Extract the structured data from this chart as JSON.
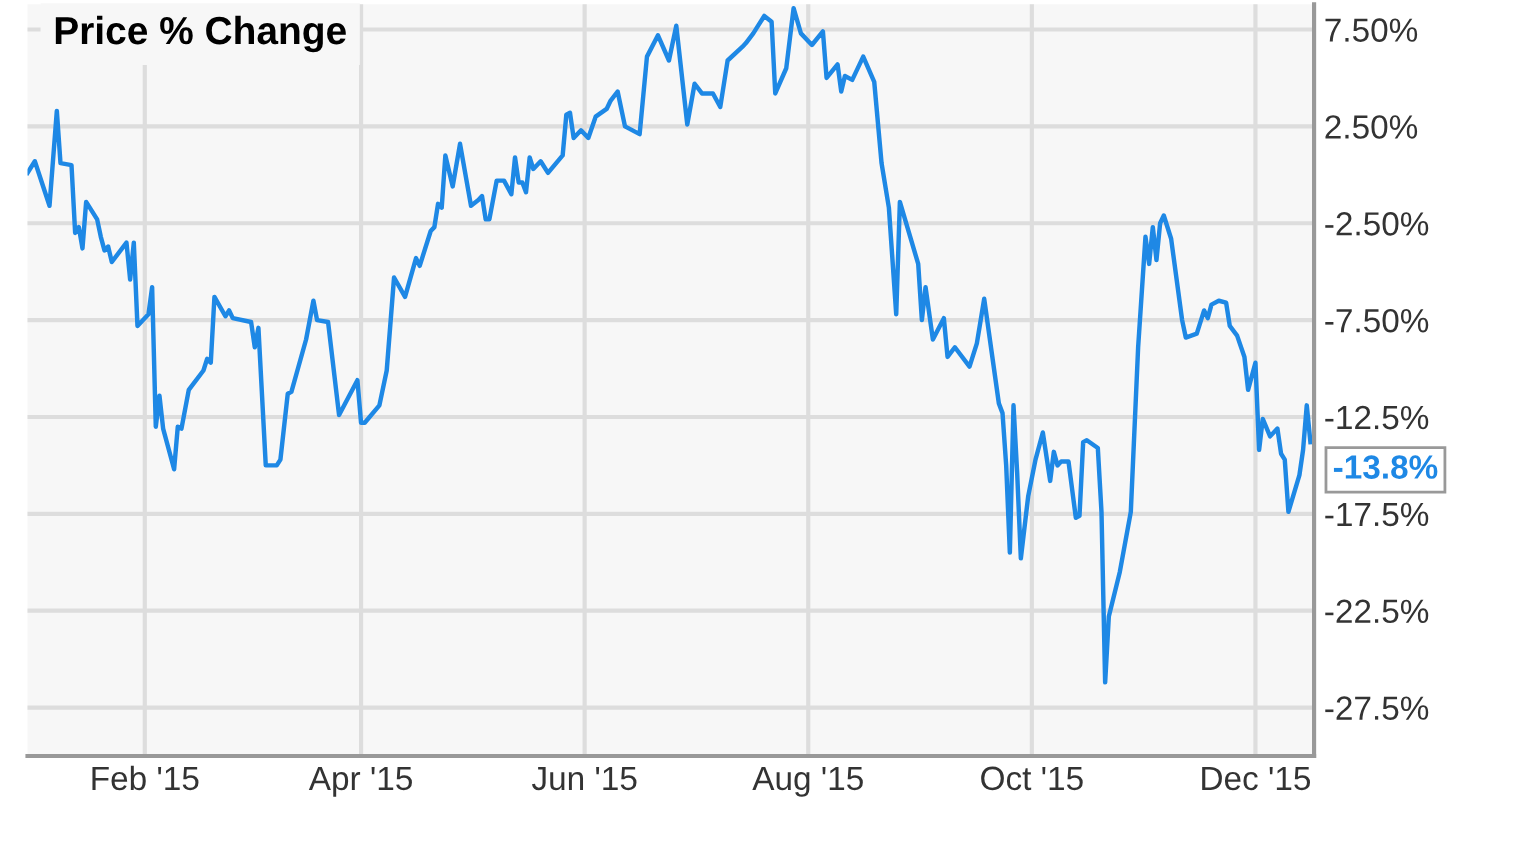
{
  "chart_data": {
    "type": "line",
    "title": "Price % Change",
    "x": [
      "2014-12-31",
      "2015-01-02",
      "2015-01-06",
      "2015-01-08",
      "2015-01-09",
      "2015-01-12",
      "2015-01-13",
      "2015-01-14",
      "2015-01-15",
      "2015-01-16",
      "2015-01-19",
      "2015-01-20",
      "2015-01-21",
      "2015-01-22",
      "2015-01-23",
      "2015-01-27",
      "2015-01-28",
      "2015-01-29",
      "2015-01-30",
      "2015-02-02",
      "2015-02-03",
      "2015-02-04",
      "2015-02-05",
      "2015-02-06",
      "2015-02-09",
      "2015-02-10",
      "2015-02-11",
      "2015-02-13",
      "2015-02-17",
      "2015-02-18",
      "2015-02-19",
      "2015-02-20",
      "2015-02-23",
      "2015-02-24",
      "2015-02-25",
      "2015-03-02",
      "2015-03-03",
      "2015-03-04",
      "2015-03-06",
      "2015-03-09",
      "2015-03-10",
      "2015-03-12",
      "2015-03-13",
      "2015-03-17",
      "2015-03-19",
      "2015-03-20",
      "2015-03-23",
      "2015-03-26",
      "2015-03-31",
      "2015-04-01",
      "2015-04-02",
      "2015-04-06",
      "2015-04-08",
      "2015-04-10",
      "2015-04-13",
      "2015-04-16",
      "2015-04-17",
      "2015-04-20",
      "2015-04-21",
      "2015-04-22",
      "2015-04-23",
      "2015-04-24",
      "2015-04-26",
      "2015-04-28",
      "2015-05-01",
      "2015-05-03",
      "2015-05-04",
      "2015-05-05",
      "2015-05-06",
      "2015-05-08",
      "2015-05-10",
      "2015-05-12",
      "2015-05-13",
      "2015-05-14",
      "2015-05-15",
      "2015-05-16",
      "2015-05-17",
      "2015-05-18",
      "2015-05-20",
      "2015-05-22",
      "2015-05-26",
      "2015-05-27",
      "2015-05-28",
      "2015-05-29",
      "2015-05-31",
      "2015-06-02",
      "2015-06-04",
      "2015-06-07",
      "2015-06-08",
      "2015-06-10",
      "2015-06-12",
      "2015-06-16",
      "2015-06-18",
      "2015-06-21",
      "2015-06-24",
      "2015-06-26",
      "2015-06-29",
      "2015-07-01",
      "2015-07-03",
      "2015-07-06",
      "2015-07-08",
      "2015-07-10",
      "2015-07-14",
      "2015-07-15",
      "2015-07-17",
      "2015-07-20",
      "2015-07-22",
      "2015-07-23",
      "2015-07-26",
      "2015-07-28",
      "2015-07-30",
      "2015-08-02",
      "2015-08-05",
      "2015-08-06",
      "2015-08-09",
      "2015-08-10",
      "2015-08-11",
      "2015-08-13",
      "2015-08-16",
      "2015-08-19",
      "2015-08-21",
      "2015-08-23",
      "2015-08-25",
      "2015-08-26",
      "2015-08-31",
      "2015-09-01",
      "2015-09-02",
      "2015-09-04",
      "2015-09-07",
      "2015-09-08",
      "2015-09-10",
      "2015-09-14",
      "2015-09-16",
      "2015-09-18",
      "2015-09-20",
      "2015-09-22",
      "2015-09-23",
      "2015-09-24",
      "2015-09-25",
      "2015-09-26",
      "2015-09-27",
      "2015-09-28",
      "2015-09-30",
      "2015-10-02",
      "2015-10-04",
      "2015-10-06",
      "2015-10-07",
      "2015-10-08",
      "2015-10-09",
      "2015-10-11",
      "2015-10-13",
      "2015-10-14",
      "2015-10-15",
      "2015-10-16",
      "2015-10-19",
      "2015-10-20",
      "2015-10-21",
      "2015-10-22",
      "2015-10-25",
      "2015-10-28",
      "2015-10-30",
      "2015-11-01",
      "2015-11-02",
      "2015-11-03",
      "2015-11-04",
      "2015-11-05",
      "2015-11-06",
      "2015-11-08",
      "2015-11-11",
      "2015-11-12",
      "2015-11-15",
      "2015-11-17",
      "2015-11-18",
      "2015-11-19",
      "2015-11-21",
      "2015-11-23",
      "2015-11-24",
      "2015-11-26",
      "2015-11-28",
      "2015-11-29",
      "2015-12-01",
      "2015-12-02",
      "2015-12-03",
      "2015-12-05",
      "2015-12-07",
      "2015-12-08",
      "2015-12-09",
      "2015-12-10",
      "2015-12-13",
      "2015-12-14",
      "2015-12-15",
      "2015-12-16"
    ],
    "series": [
      {
        "color": "#1e88e5",
        "values": [
          0.1,
          0.7,
          -1.6,
          3.3,
          0.6,
          0.5,
          -3.0,
          -2.7,
          -3.8,
          -1.4,
          -2.3,
          -3.2,
          -3.9,
          -3.7,
          -4.5,
          -3.5,
          -5.4,
          -3.5,
          -7.8,
          -7.2,
          -5.8,
          -13.0,
          -11.4,
          -13.1,
          -15.2,
          -13.0,
          -13.1,
          -11.1,
          -10.1,
          -9.5,
          -9.7,
          -6.3,
          -7.3,
          -7.0,
          -7.4,
          -7.6,
          -8.9,
          -7.9,
          -15.0,
          -15.0,
          -14.7,
          -11.3,
          -11.2,
          -8.5,
          -6.5,
          -7.5,
          -7.6,
          -12.4,
          -10.6,
          -12.8,
          -12.8,
          -11.9,
          -10.1,
          -5.3,
          -6.3,
          -4.3,
          -4.7,
          -2.9,
          -2.7,
          -1.5,
          -1.7,
          1.0,
          -0.6,
          1.6,
          -1.6,
          -1.3,
          -1.1,
          -2.3,
          -2.3,
          -0.3,
          -0.3,
          -1.0,
          0.9,
          -0.4,
          -0.4,
          -0.9,
          0.9,
          0.3,
          0.7,
          0.1,
          1.0,
          3.1,
          3.2,
          1.9,
          2.3,
          1.9,
          3.0,
          3.4,
          3.8,
          4.3,
          2.5,
          2.1,
          6.1,
          7.2,
          5.9,
          7.7,
          2.6,
          4.7,
          4.2,
          4.2,
          3.5,
          5.9,
          6.6,
          6.8,
          7.3,
          8.2,
          7.9,
          4.2,
          5.5,
          8.6,
          7.3,
          6.7,
          7.4,
          5.0,
          5.7,
          4.3,
          5.1,
          4.9,
          6.1,
          4.8,
          0.6,
          -1.7,
          -7.2,
          -1.4,
          -4.6,
          -7.5,
          -5.8,
          -8.5,
          -7.4,
          -9.4,
          -8.9,
          -9.9,
          -8.7,
          -6.4,
          -9.1,
          -11.8,
          -12.3,
          -15.0,
          -19.5,
          -11.9,
          -15.4,
          -19.8,
          -16.6,
          -14.7,
          -13.3,
          -15.8,
          -14.3,
          -15.0,
          -14.8,
          -14.8,
          -17.7,
          -17.6,
          -13.8,
          -13.7,
          -14.1,
          -17.4,
          -26.2,
          -22.8,
          -20.5,
          -17.4,
          -8.9,
          -3.2,
          -4.6,
          -2.7,
          -4.4,
          -2.5,
          -2.1,
          -3.3,
          -7.5,
          -8.4,
          -8.2,
          -7.0,
          -7.4,
          -6.7,
          -6.5,
          -6.6,
          -7.8,
          -8.3,
          -9.4,
          -11.1,
          -9.7,
          -14.2,
          -12.6,
          -13.5,
          -13.1,
          -14.4,
          -14.7,
          -17.4,
          -15.5,
          -14.2,
          -11.9,
          -13.8
        ]
      }
    ],
    "xlim": [
      "2014-12-31",
      "2015-12-17"
    ],
    "xticks": [
      {
        "value": "2015-02-01",
        "label": "Feb '15"
      },
      {
        "value": "2015-04-01",
        "label": "Apr '15"
      },
      {
        "value": "2015-06-01",
        "label": "Jun '15"
      },
      {
        "value": "2015-08-01",
        "label": "Aug '15"
      },
      {
        "value": "2015-10-01",
        "label": "Oct '15"
      },
      {
        "value": "2015-12-01",
        "label": "Dec '15"
      }
    ],
    "ylim": [
      -30,
      8.8
    ],
    "yticks": [
      {
        "value": 7.5,
        "label": "7.50%"
      },
      {
        "value": 2.5,
        "label": "2.50%"
      },
      {
        "value": -2.5,
        "label": "-2.50%"
      },
      {
        "value": -7.5,
        "label": "-7.50%"
      },
      {
        "value": -12.5,
        "label": "-12.5%"
      },
      {
        "value": -17.5,
        "label": "-17.5%"
      },
      {
        "value": -22.5,
        "label": "-22.5%"
      },
      {
        "value": -27.5,
        "label": "-27.5%"
      }
    ],
    "annotations": [
      {
        "text": "-13.8%",
        "x": "2015-12-16",
        "y": -13.8
      }
    ],
    "grid": true,
    "legend": false,
    "marker": "none",
    "line_style": "solid"
  }
}
